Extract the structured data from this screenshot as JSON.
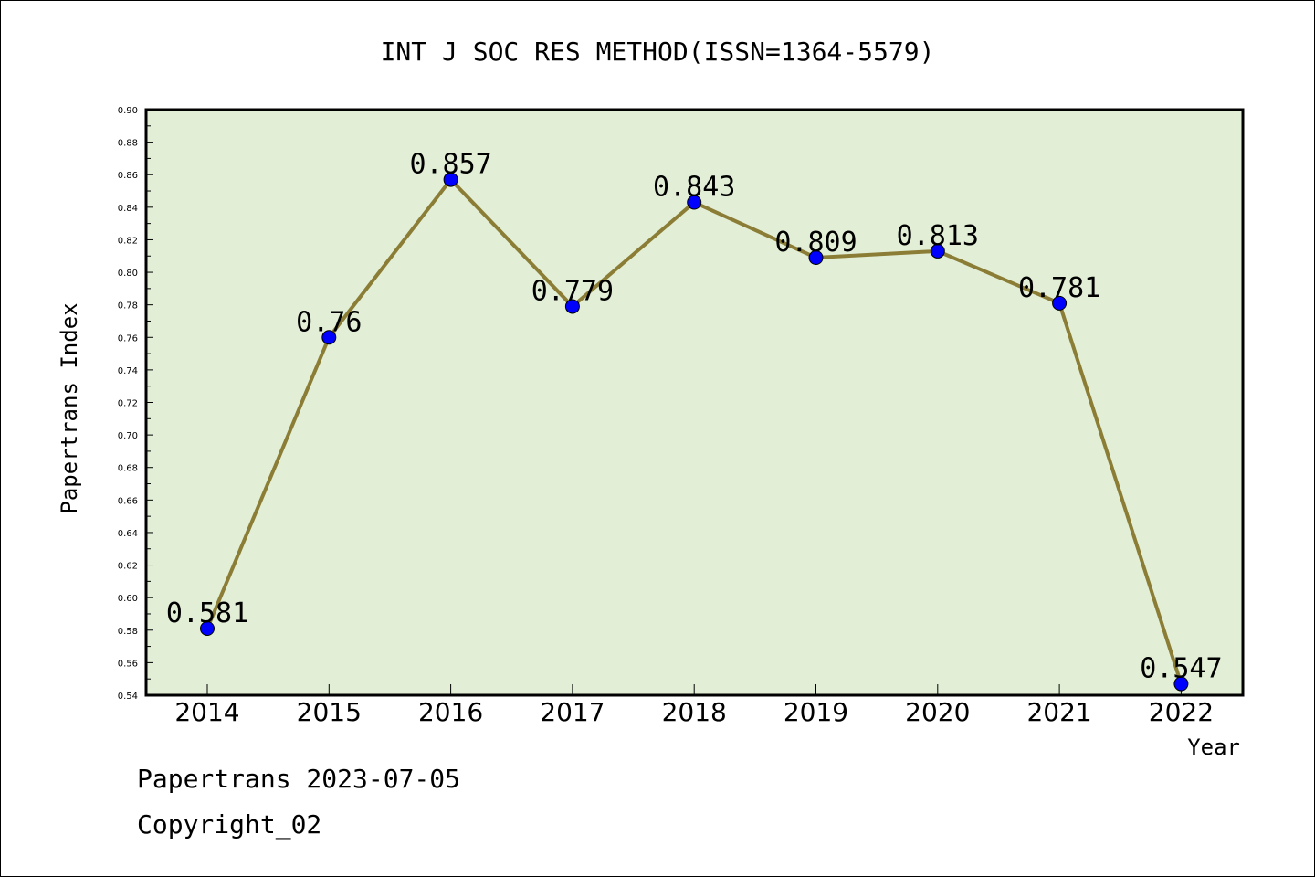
{
  "chart_data": {
    "type": "line",
    "title": "INT J SOC RES METHOD(ISSN=1364-5579)",
    "xlabel": "Year",
    "ylabel": "Papertrans Index",
    "categories": [
      "2014",
      "2015",
      "2016",
      "2017",
      "2018",
      "2019",
      "2020",
      "2021",
      "2022"
    ],
    "series": [
      {
        "values": [
          0.581,
          0.76,
          0.857,
          0.779,
          0.843,
          0.809,
          0.813,
          0.781,
          0.547
        ]
      }
    ],
    "data_labels": [
      "0.581",
      "0.76",
      "0.857",
      "0.779",
      "0.843",
      "0.809",
      "0.813",
      "0.781",
      "0.547"
    ],
    "ylim": [
      0.54,
      0.9
    ],
    "yticks": [
      "0.54",
      "0.56",
      "0.58",
      "0.60",
      "0.62",
      "0.64",
      "0.66",
      "0.68",
      "0.70",
      "0.72",
      "0.74",
      "0.76",
      "0.78",
      "0.80",
      "0.82",
      "0.84",
      "0.86",
      "0.88",
      "0.90"
    ],
    "grid": false,
    "colors": {
      "plot_background": "#e2efd6",
      "line": "#8b7d35",
      "marker": "#0000ff",
      "frame": "#000000"
    }
  },
  "footer": {
    "line1": "Papertrans 2023-07-05",
    "line2": "Copyright_02"
  }
}
